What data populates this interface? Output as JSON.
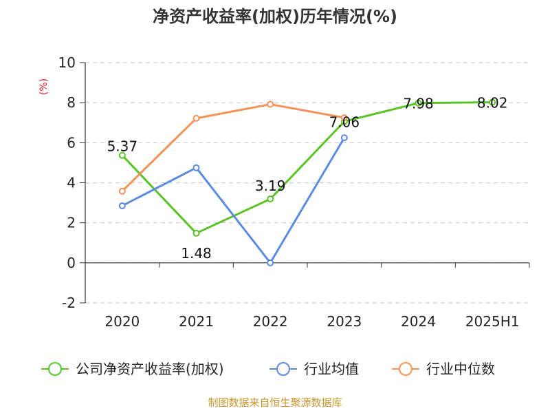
{
  "title": "净资产收益率(加权)历年情况(%)",
  "source": "制图数据来自恒生聚源数据库",
  "chart_data": {
    "type": "line",
    "title": "净资产收益率(加权)历年情况(%)",
    "ylabel": "(%)",
    "xlabel": "",
    "categories": [
      "2020",
      "2021",
      "2022",
      "2023",
      "2024",
      "2025H1"
    ],
    "ylim": [
      -2,
      10
    ],
    "yticks": [
      10,
      8,
      6,
      4,
      2,
      0,
      -2
    ],
    "grid": true,
    "legend_position": "bottom",
    "series": [
      {
        "name": "公司净资产收益率(加权)",
        "color": "#5ac324",
        "values": [
          5.37,
          1.48,
          3.19,
          7.06,
          7.98,
          8.02
        ],
        "labels": [
          "5.37",
          "1.48",
          "3.19",
          "7.06",
          "7.98",
          "8.02"
        ]
      },
      {
        "name": "行业均值",
        "color": "#5b8be0",
        "values": [
          2.85,
          4.75,
          0.0,
          6.25,
          null,
          null
        ]
      },
      {
        "name": "行业中位数",
        "color": "#f4925a",
        "values": [
          3.58,
          7.22,
          7.92,
          7.25,
          null,
          null
        ]
      }
    ]
  }
}
